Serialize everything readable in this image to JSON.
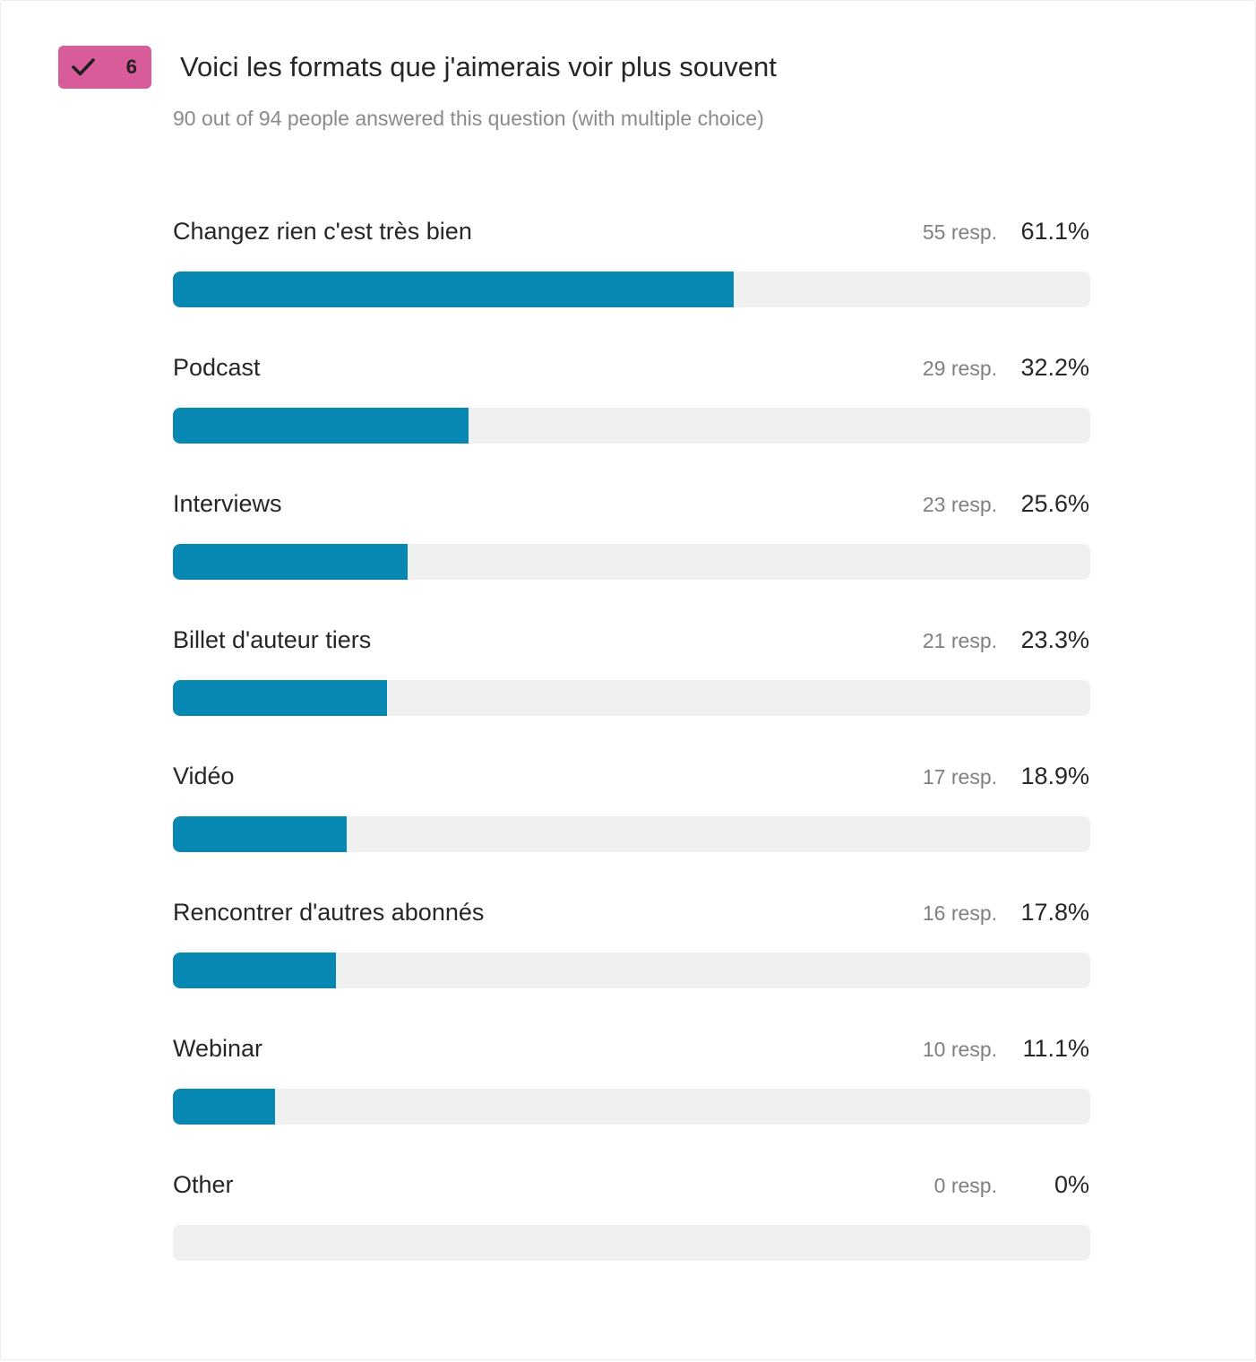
{
  "question": {
    "number": "6",
    "title": "Voici les formats que j'aimerais voir plus souvent",
    "subtitle": "90 out of 94 people answered this question (with multiple choice)",
    "icon": "check-icon"
  },
  "colors": {
    "badge": "#d95c9a",
    "bar": "#0788b2",
    "track": "#f0f0f0"
  },
  "chart_data": {
    "type": "bar",
    "orientation": "horizontal",
    "title": "Voici les formats que j'aimerais voir plus souvent",
    "categories": [
      "Changez rien c'est très bien",
      "Podcast",
      "Interviews",
      "Billet d'auteur tiers",
      "Vidéo",
      "Rencontrer d'autres abonnés",
      "Webinar",
      "Other"
    ],
    "responses": [
      55,
      29,
      23,
      21,
      17,
      16,
      10,
      0
    ],
    "values": [
      61.1,
      32.2,
      25.6,
      23.3,
      18.9,
      17.8,
      11.1,
      0
    ],
    "response_labels": [
      "55 resp.",
      "29 resp.",
      "23 resp.",
      "21 resp.",
      "17 resp.",
      "16 resp.",
      "10 resp.",
      "0 resp."
    ],
    "percent_labels": [
      "61.1%",
      "32.2%",
      "25.6%",
      "23.3%",
      "18.9%",
      "17.8%",
      "11.1%",
      "0%"
    ],
    "xlim": [
      0,
      100
    ],
    "grid": false
  }
}
